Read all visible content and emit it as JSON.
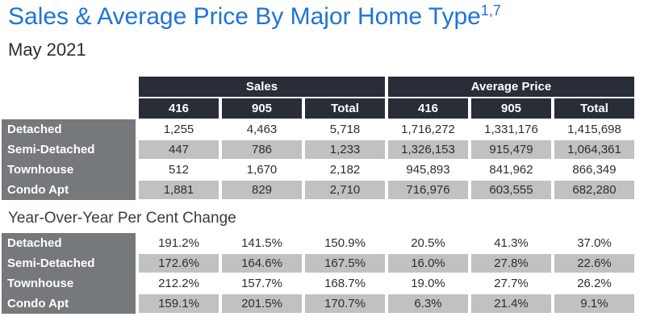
{
  "page": {
    "title": "Sales & Average Price By Major Home Type",
    "title_superscript": "1,7",
    "subtitle": "May 2021",
    "section2_title": "Year-Over-Year Per Cent Change"
  },
  "colors": {
    "title_blue": "#1e74d6",
    "header_dark": "#282d38",
    "row_label_gray": "#76797c",
    "alt_row_gray": "#c0c1c1",
    "text_dark": "#2e2e2e"
  },
  "main_table": {
    "column_groups": [
      {
        "label": "Sales",
        "span": 3
      },
      {
        "label": "Average Price",
        "span": 3
      }
    ],
    "columns": [
      "416",
      "905",
      "Total",
      "416",
      "905",
      "Total"
    ],
    "rows": [
      {
        "label": "Detached",
        "values": [
          "1,255",
          "4,463",
          "5,718",
          "1,716,272",
          "1,331,176",
          "1,415,698"
        ]
      },
      {
        "label": "Semi-Detached",
        "values": [
          "447",
          "786",
          "1,233",
          "1,326,153",
          "915,479",
          "1,064,361"
        ]
      },
      {
        "label": "Townhouse",
        "values": [
          "512",
          "1,670",
          "2,182",
          "945,893",
          "841,962",
          "866,349"
        ]
      },
      {
        "label": "Condo Apt",
        "values": [
          "1,881",
          "829",
          "2,710",
          "716,976",
          "603,555",
          "682,280"
        ]
      }
    ]
  },
  "yoy_table": {
    "rows": [
      {
        "label": "Detached",
        "values": [
          "191.2%",
          "141.5%",
          "150.9%",
          "20.5%",
          "41.3%",
          "37.0%"
        ]
      },
      {
        "label": "Semi-Detached",
        "values": [
          "172.6%",
          "164.6%",
          "167.5%",
          "16.0%",
          "27.8%",
          "22.6%"
        ]
      },
      {
        "label": "Townhouse",
        "values": [
          "212.2%",
          "157.7%",
          "168.7%",
          "19.0%",
          "27.7%",
          "26.2%"
        ]
      },
      {
        "label": "Condo Apt",
        "values": [
          "159.1%",
          "201.5%",
          "170.7%",
          "6.3%",
          "21.4%",
          "9.1%"
        ]
      }
    ]
  }
}
